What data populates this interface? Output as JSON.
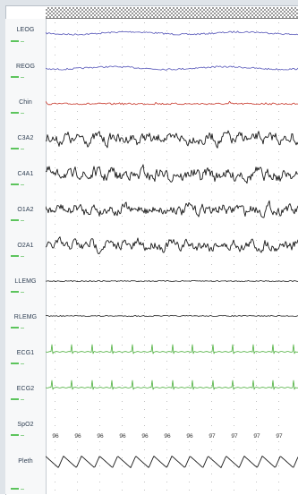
{
  "channels": [
    {
      "id": "leog",
      "label": "LEOG",
      "color": "#5555b8",
      "kind": "eog"
    },
    {
      "id": "reog",
      "label": "REOG",
      "color": "#5555b8",
      "kind": "eog"
    },
    {
      "id": "chin",
      "label": "Chin",
      "color": "#c8372a",
      "kind": "chin"
    },
    {
      "id": "c3a2",
      "label": "C3A2",
      "color": "#1a1a1a",
      "kind": "eeg"
    },
    {
      "id": "c4a1",
      "label": "C4A1",
      "color": "#1a1a1a",
      "kind": "eeg"
    },
    {
      "id": "o1a2",
      "label": "O1A2",
      "color": "#1a1a1a",
      "kind": "eeg"
    },
    {
      "id": "o2a1",
      "label": "O2A1",
      "color": "#1a1a1a",
      "kind": "eeg"
    },
    {
      "id": "llemg",
      "label": "LLEMG",
      "color": "#222222",
      "kind": "emg"
    },
    {
      "id": "rlemg",
      "label": "RLEMG",
      "color": "#222222",
      "kind": "emg"
    },
    {
      "id": "ecg1",
      "label": "ECG1",
      "color": "#4caf3c",
      "kind": "ecg"
    },
    {
      "id": "ecg2",
      "label": "ECG2",
      "color": "#4caf3c",
      "kind": "ecg"
    },
    {
      "id": "spo2",
      "label": "SpO2",
      "color": "#333333",
      "kind": "values"
    },
    {
      "id": "pleth",
      "label": "Pleth",
      "color": "#1a1a1a",
      "kind": "pleth"
    }
  ],
  "spo2_values": [
    "96",
    "96",
    "96",
    "96",
    "96",
    "96",
    "96",
    "97",
    "97",
    "97",
    "97"
  ],
  "colors": {
    "grid": "#c2c2c2",
    "scale_marker": "#5cc45c",
    "label_text": "#2e3e52"
  }
}
